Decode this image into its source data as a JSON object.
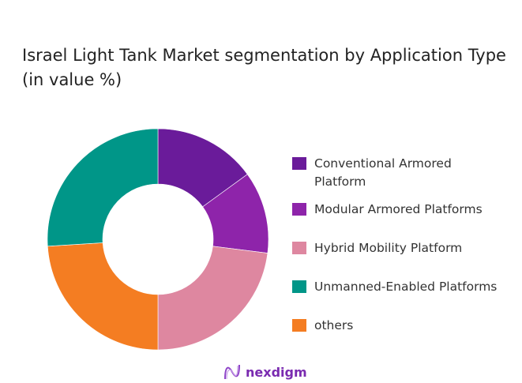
{
  "chart_data": {
    "type": "pie",
    "donut": true,
    "title": "Israel Light Tank Market segmentation by Application Type (in value %)",
    "legend_position": "right",
    "slices": [
      {
        "label": "Conventional Armored Platform",
        "value": 15,
        "color": "#6a1b9a"
      },
      {
        "label": "Modular Armored Platforms",
        "value": 12,
        "color": "#8e24aa"
      },
      {
        "label": "Hybrid Mobility Platform",
        "value": 23,
        "color": "#de87a0"
      },
      {
        "label": "others",
        "value": 24,
        "color": "#f47d22"
      },
      {
        "label": "Unmanned-Enabled Platforms",
        "value": 26,
        "color": "#009688"
      }
    ],
    "legend": [
      {
        "label": "Conventional Armored Platform",
        "color": "#6a1b9a"
      },
      {
        "label": "Modular Armored Platforms",
        "color": "#8e24aa"
      },
      {
        "label": "Hybrid Mobility Platform",
        "color": "#de87a0"
      },
      {
        "label": "Unmanned-Enabled Platforms",
        "color": "#009688"
      },
      {
        "label": "others",
        "color": "#f47d22"
      }
    ]
  },
  "logo": {
    "text": "nexdigm",
    "color": "#7a2bb0"
  }
}
